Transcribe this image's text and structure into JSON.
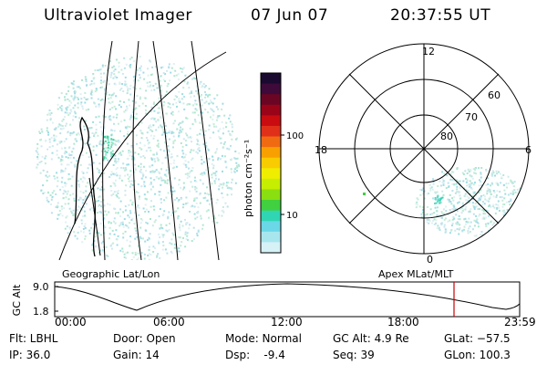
{
  "header": {
    "instrument": "Ultraviolet Imager",
    "date": "07 Jun 07",
    "time": "20:37:55 UT"
  },
  "colorbar": {
    "unit_label": "photon cm⁻²s⁻¹",
    "ticks": [
      "100",
      "10"
    ],
    "colors": [
      "#1a0a30",
      "#3d0a3a",
      "#6a0624",
      "#9a0418",
      "#c80c10",
      "#e0301a",
      "#f06a12",
      "#f8a000",
      "#f8cc00",
      "#f0ee00",
      "#c6ee00",
      "#8adf10",
      "#40d040",
      "#30d6b4",
      "#6ad8e6",
      "#a8e6ee",
      "#d6f2f6"
    ]
  },
  "left_panel": {
    "caption": "Geographic Lat/Lon"
  },
  "right_panel": {
    "caption": "Apex MLat/MLT",
    "mlt_labels": [
      "12",
      "18",
      "6",
      "0"
    ],
    "lat_labels": [
      "60",
      "70",
      "80"
    ]
  },
  "timeline": {
    "axis_label": "GC Alt",
    "y_ticks": [
      "9.0",
      "1.8"
    ],
    "x_ticks": [
      "00:00",
      "06:00",
      "12:00",
      "18:00",
      "23:59"
    ],
    "marker_color": "#cc0000"
  },
  "info": {
    "flt": "Flt: LBHL",
    "ip": "IP: 36.0",
    "door": "Door: Open",
    "gain": "Gain: 14",
    "mode": "Mode: Normal",
    "dsp": "Dsp:    -9.4",
    "gcalt": "GC Alt: 4.9 Re",
    "seq": "Seq: 39",
    "glat": "GLat: −57.5",
    "glon": "GLon: 100.3"
  }
}
